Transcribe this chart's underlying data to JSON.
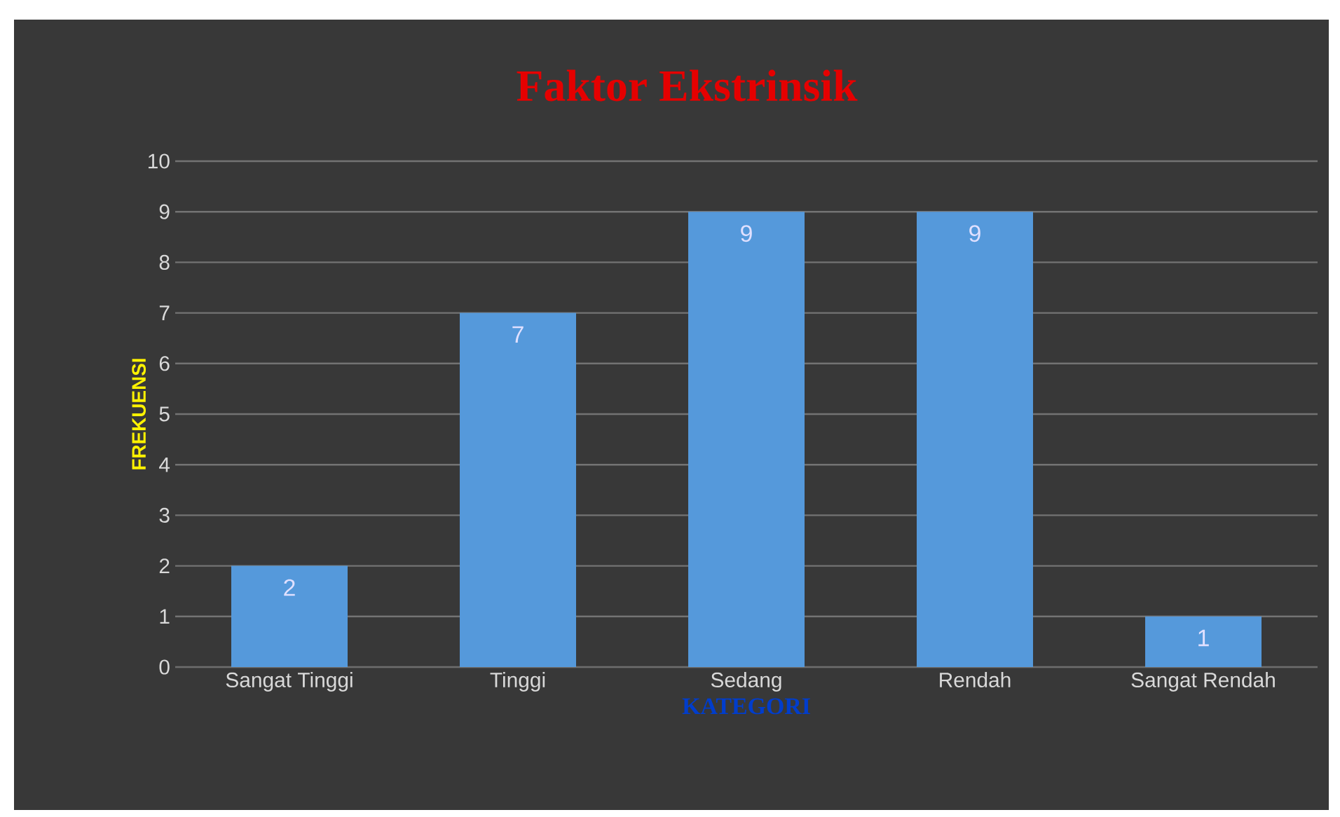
{
  "chart_data": {
    "type": "bar",
    "title": "Faktor Ekstrinsik",
    "xlabel": "KATEGORI",
    "ylabel": "FREKUENSI",
    "categories": [
      "Sangat Tinggi",
      "Tinggi",
      "Sedang",
      "Rendah",
      "Sangat Rendah"
    ],
    "values": [
      2,
      7,
      9,
      9,
      1
    ],
    "color": "#5599db",
    "ylim": [
      0,
      10
    ],
    "yticks": [
      0,
      1,
      2,
      3,
      4,
      5,
      6,
      7,
      8,
      9,
      10
    ],
    "grid": "y",
    "data_labels": true
  }
}
